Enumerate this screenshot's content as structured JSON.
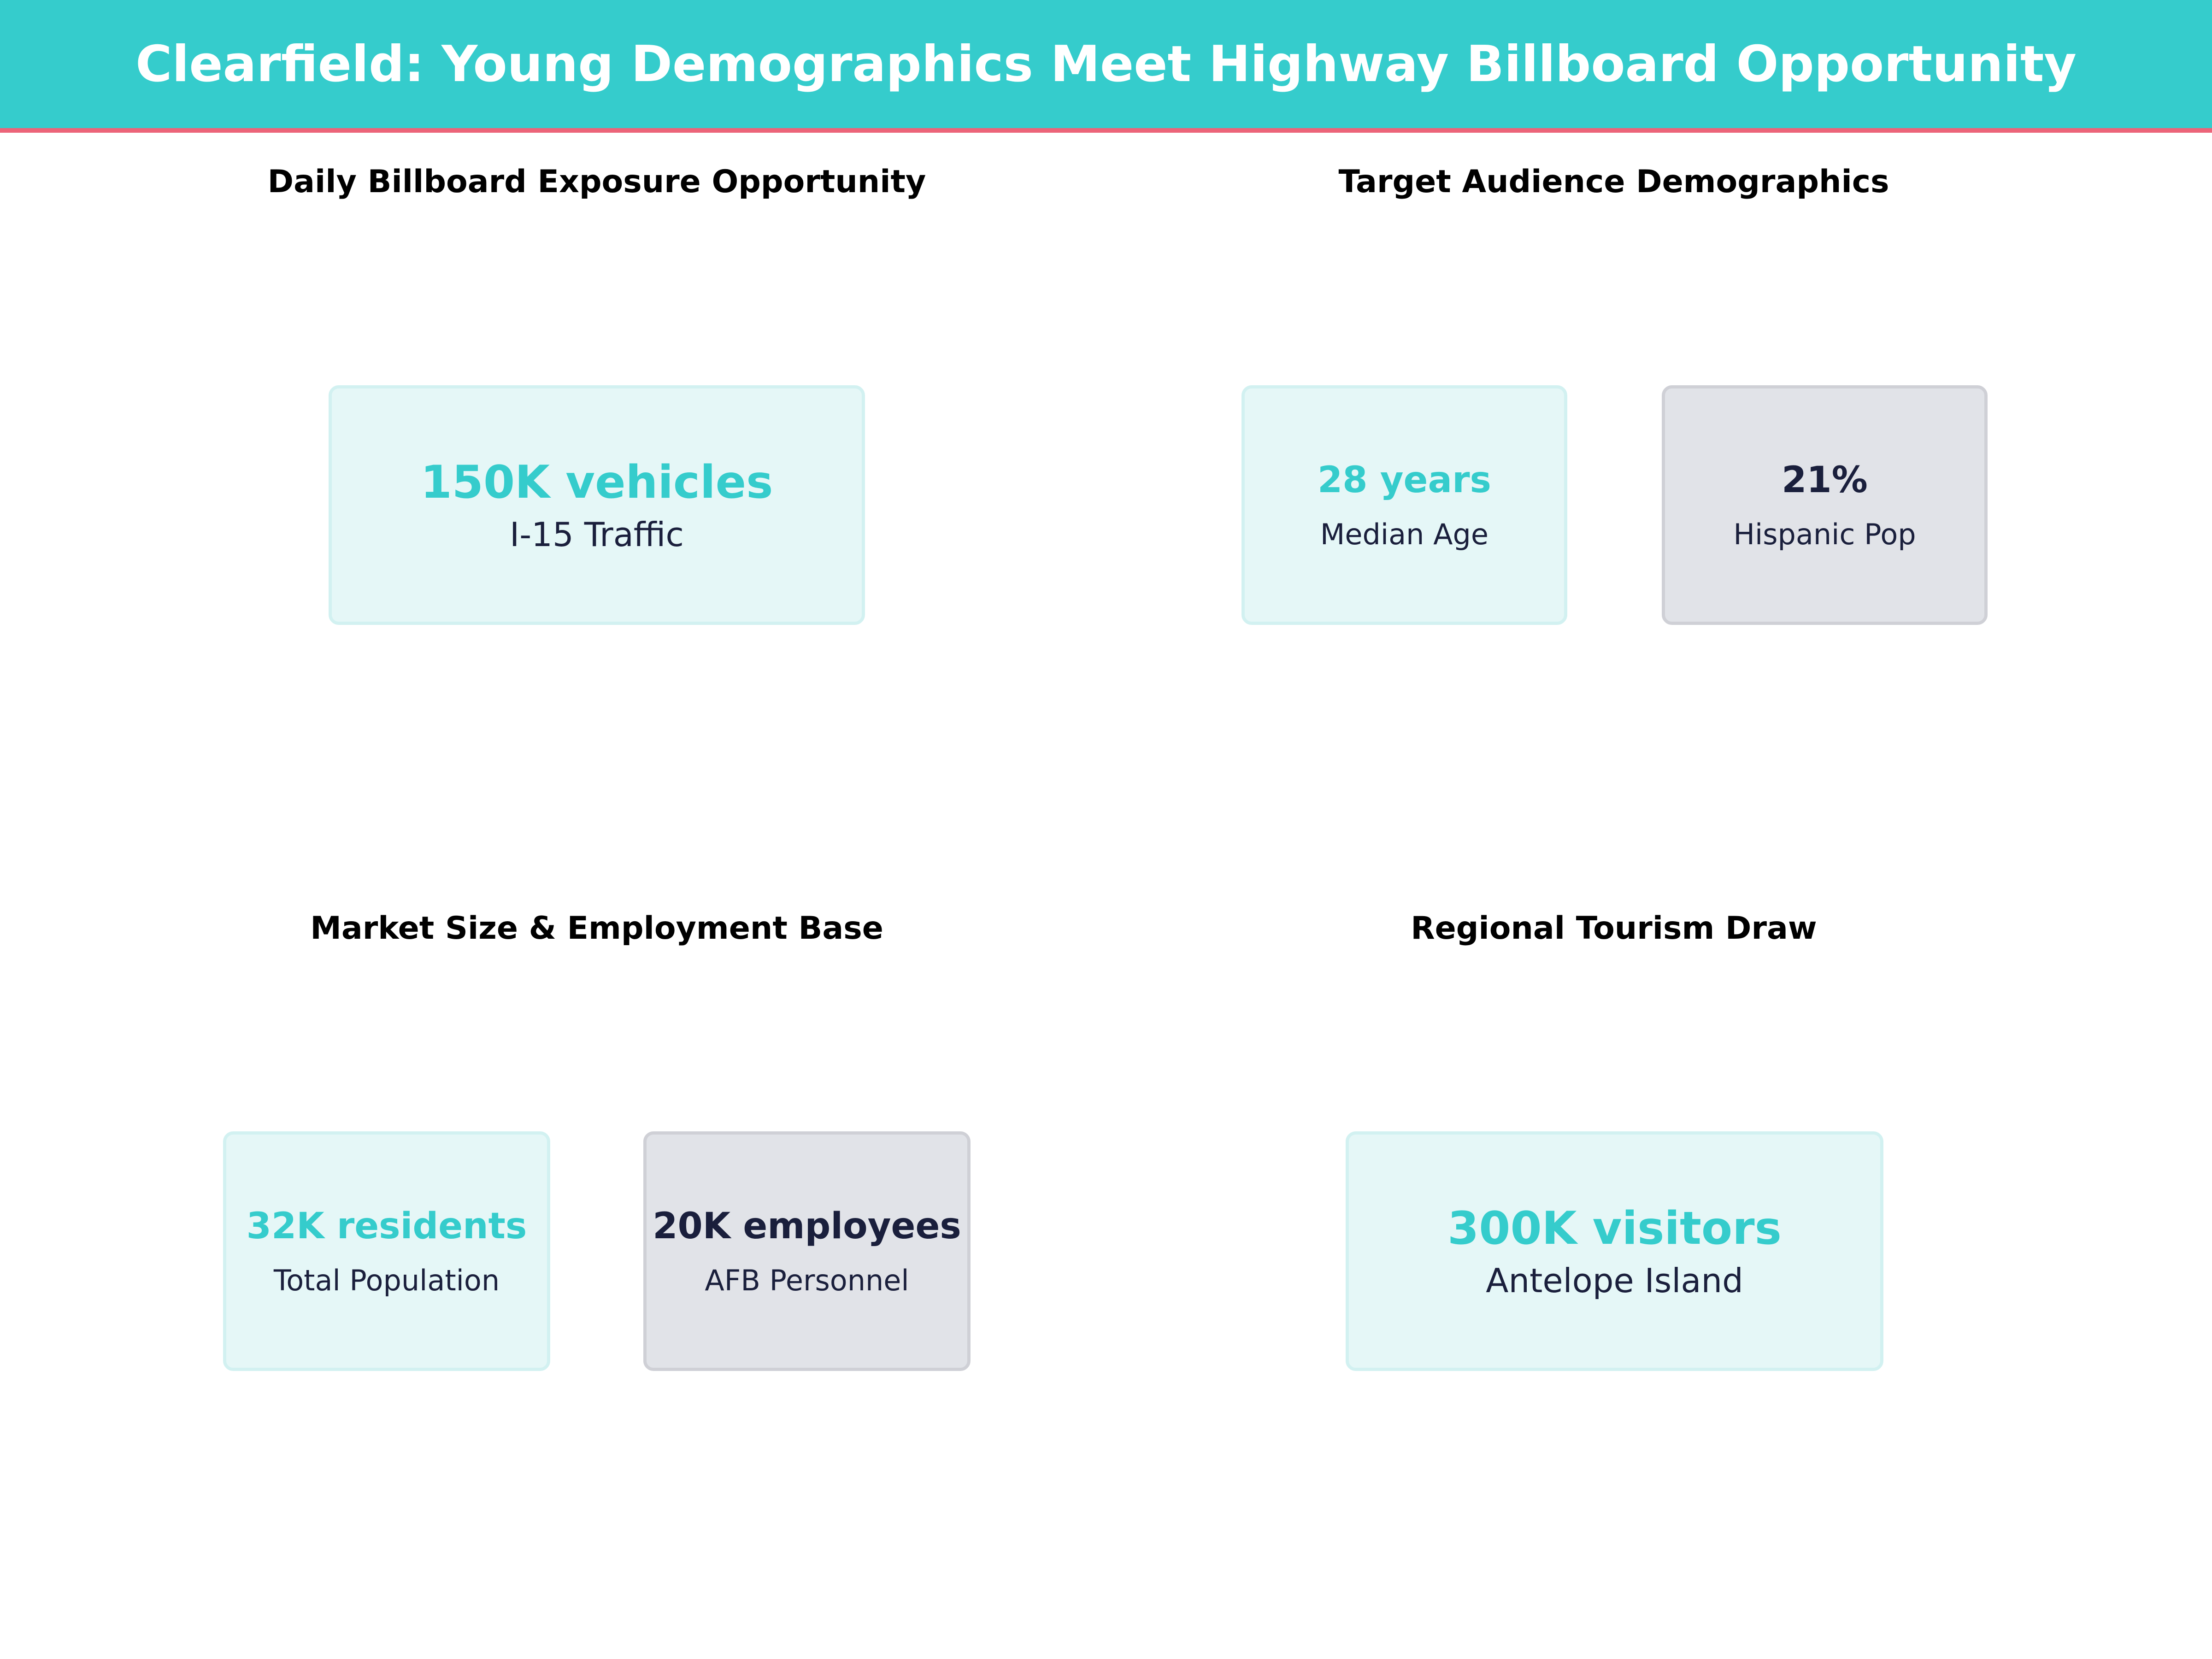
{
  "title": "Clearfield: Young Demographics Meet Highway Billboard Opportunity",
  "colors": {
    "accent": "#35CCCC",
    "header_underline": "#EC6479",
    "dark": "#1A1F3C",
    "teal_card_bg": "#E5F7F7",
    "gray_card_bg": "#E1E3E8"
  },
  "panels": [
    {
      "title": "Daily Billboard Exposure Opportunity",
      "cards": [
        {
          "value": "150K vehicles",
          "label": "I-15 Traffic",
          "style": "teal"
        }
      ]
    },
    {
      "title": "Target Audience Demographics",
      "cards": [
        {
          "value": "28 years",
          "label": "Median Age",
          "style": "teal"
        },
        {
          "value": "21%",
          "label": "Hispanic Pop",
          "style": "gray"
        }
      ]
    },
    {
      "title": "Market Size & Employment Base",
      "cards": [
        {
          "value": "32K residents",
          "label": "Total Population",
          "style": "teal"
        },
        {
          "value": "20K employees",
          "label": "AFB Personnel",
          "style": "gray"
        }
      ]
    },
    {
      "title": "Regional Tourism Draw",
      "cards": [
        {
          "value": "300K visitors",
          "label": "Antelope Island",
          "style": "teal"
        }
      ]
    }
  ]
}
